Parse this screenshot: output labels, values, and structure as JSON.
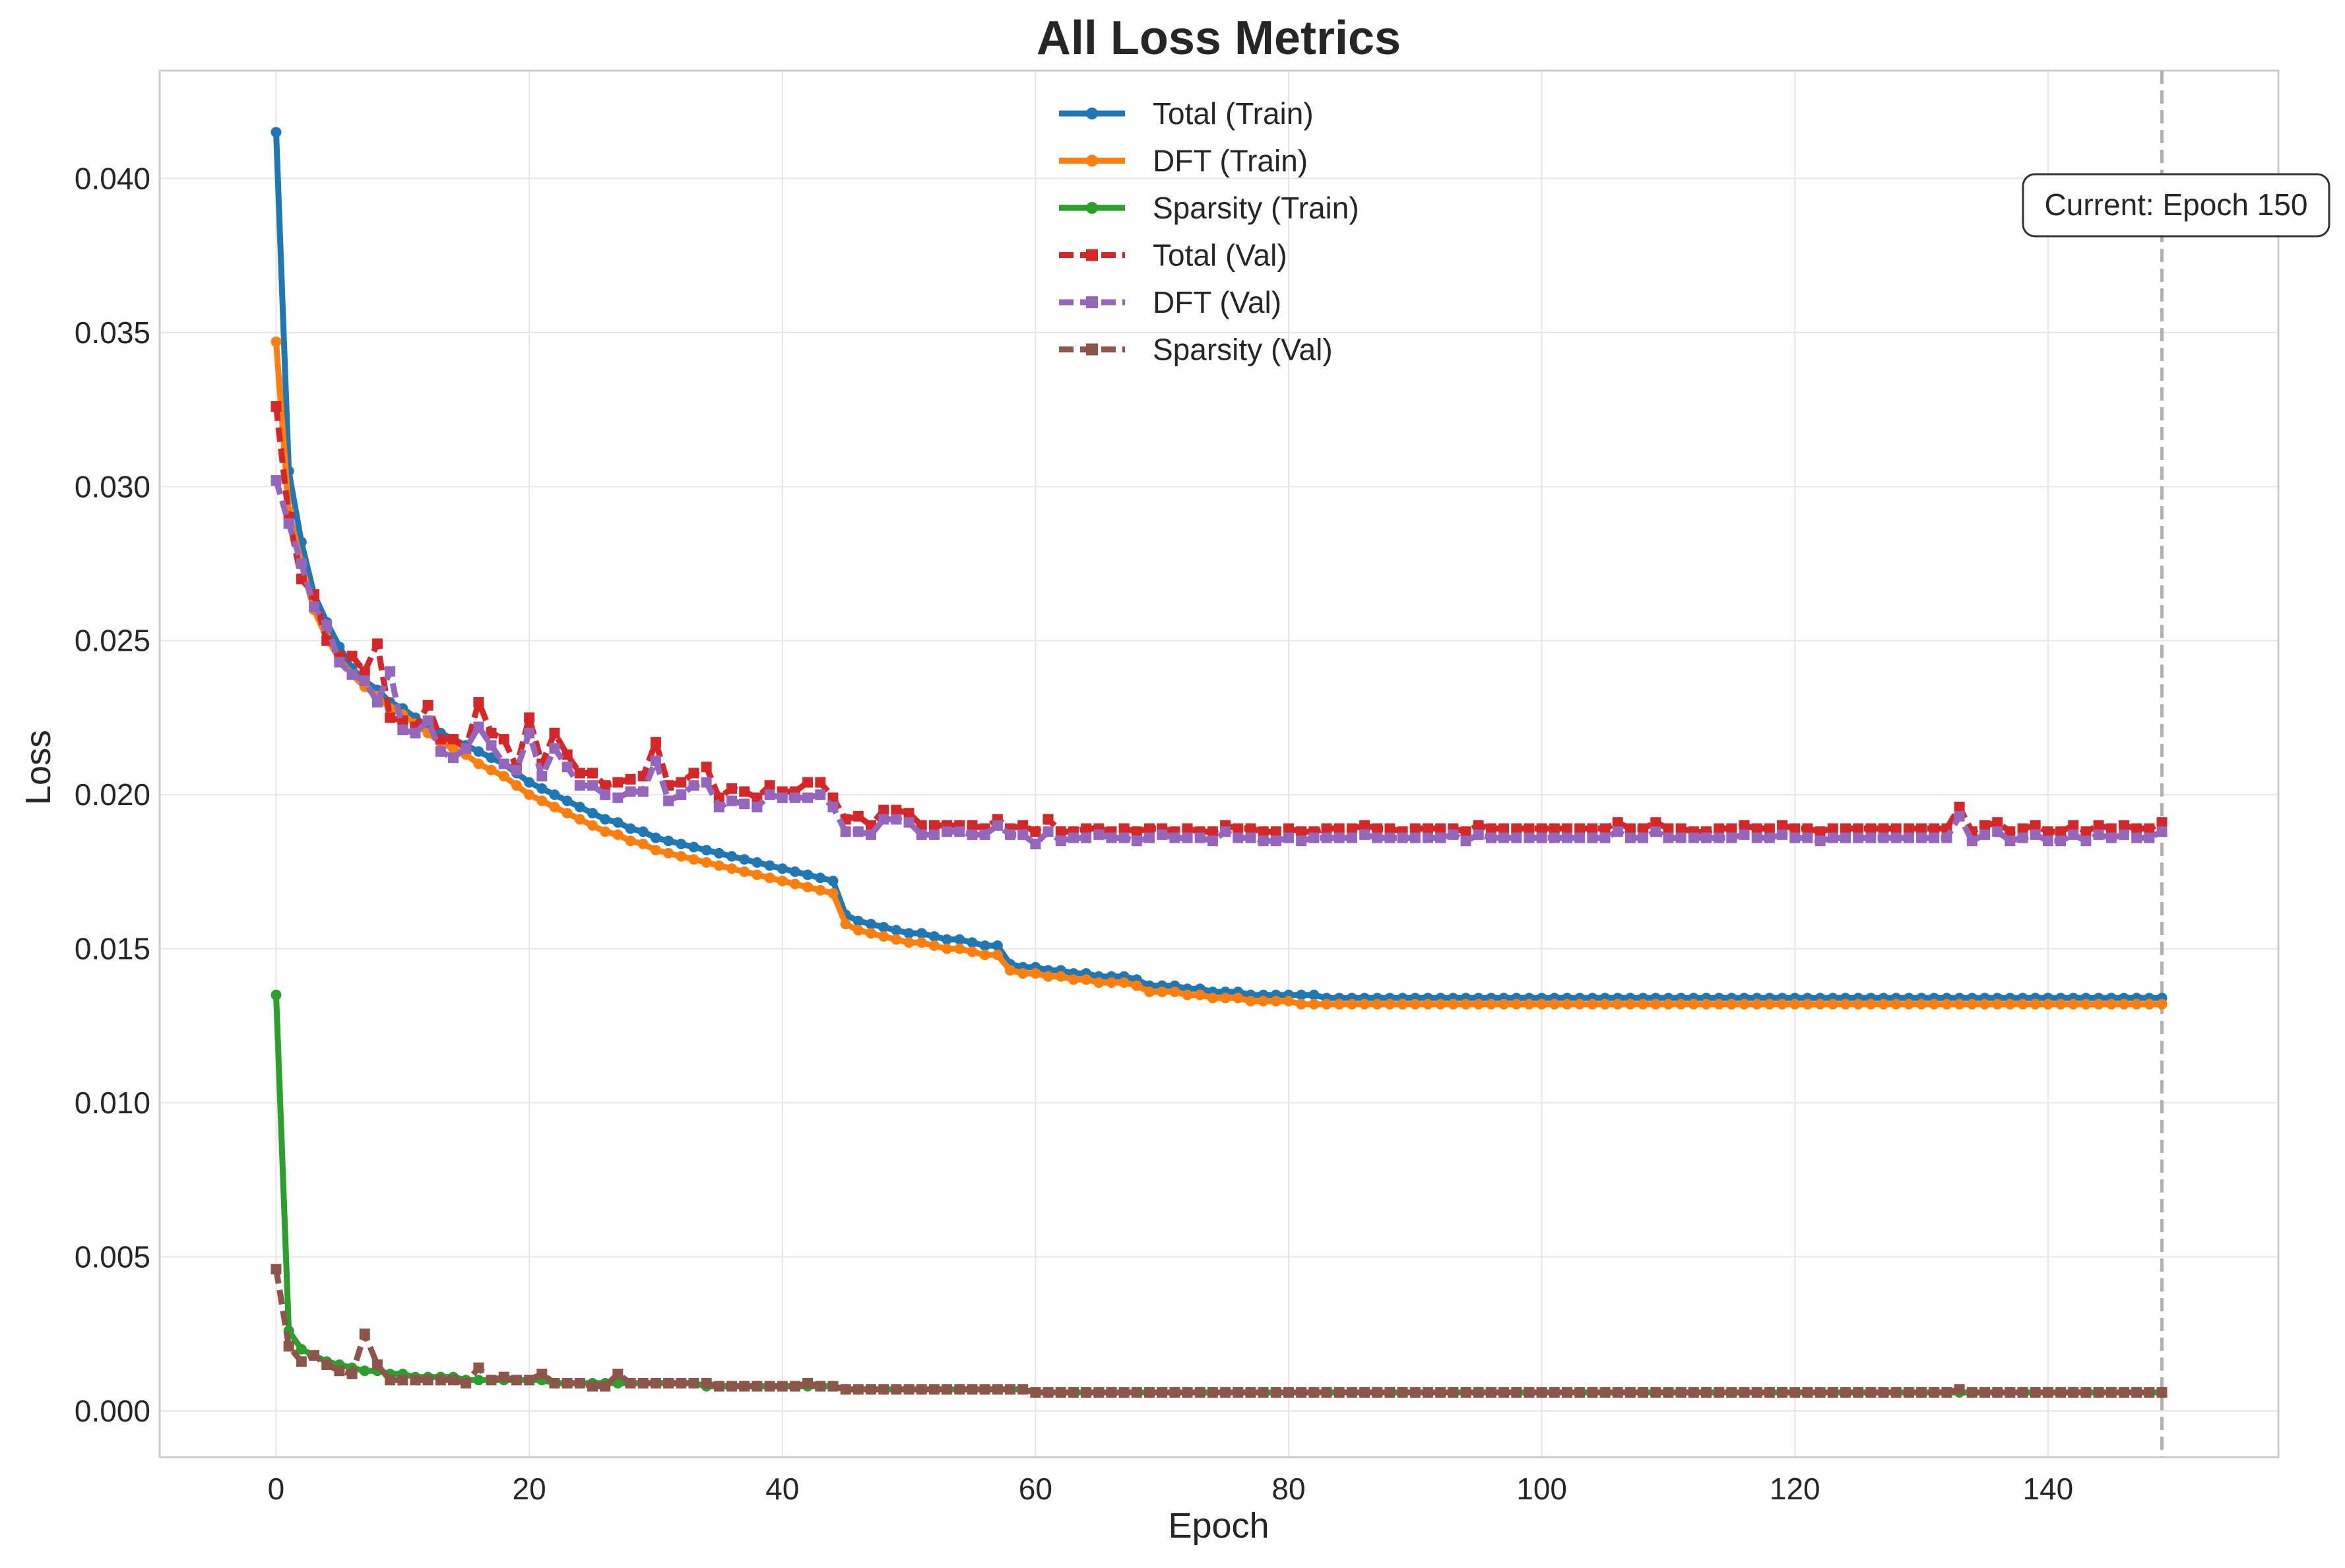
{
  "chart_data": {
    "type": "line",
    "title": "All Loss Metrics",
    "xlabel": "Epoch",
    "ylabel": "Loss",
    "xlim": [
      -9.2,
      158.2
    ],
    "ylim": [
      -0.0015,
      0.0435
    ],
    "xticks": [
      0,
      20,
      40,
      60,
      80,
      100,
      120,
      140
    ],
    "yticks": [
      0.0,
      0.005,
      0.01,
      0.015,
      0.02,
      0.025,
      0.03,
      0.035,
      0.04
    ],
    "xtick_labels": [
      "0",
      "20",
      "40",
      "60",
      "80",
      "100",
      "120",
      "140"
    ],
    "ytick_labels": [
      "0.000",
      "0.005",
      "0.010",
      "0.015",
      "0.020",
      "0.025",
      "0.030",
      "0.035",
      "0.040"
    ],
    "grid": true,
    "legend_position": "top-center",
    "annotation": {
      "text": "Current: Epoch 150",
      "vline_x": 149
    },
    "x": "0..149",
    "series": [
      {
        "name": "Total (Train)",
        "color": "#1f77b4",
        "linestyle": "solid",
        "marker": "circle",
        "values": [
          0.0415,
          0.0305,
          0.0282,
          0.0265,
          0.0256,
          0.0248,
          0.0241,
          0.0237,
          0.0234,
          0.023,
          0.0228,
          0.0225,
          0.0222,
          0.022,
          0.0218,
          0.0216,
          0.0214,
          0.0212,
          0.021,
          0.0207,
          0.0204,
          0.0202,
          0.02,
          0.0198,
          0.0196,
          0.0194,
          0.0192,
          0.0191,
          0.0189,
          0.0188,
          0.0186,
          0.0185,
          0.0184,
          0.0183,
          0.0182,
          0.0181,
          0.018,
          0.0179,
          0.0178,
          0.0177,
          0.0176,
          0.0175,
          0.0174,
          0.0173,
          0.0172,
          0.0161,
          0.0159,
          0.0158,
          0.0157,
          0.0156,
          0.0155,
          0.0155,
          0.0154,
          0.0153,
          0.0153,
          0.0152,
          0.0151,
          0.0151,
          0.0145,
          0.0144,
          0.0144,
          0.0143,
          0.0143,
          0.0142,
          0.0142,
          0.0141,
          0.0141,
          0.0141,
          0.014,
          0.0138,
          0.0138,
          0.0138,
          0.0137,
          0.0137,
          0.0136,
          0.0136,
          0.0136,
          0.0135,
          0.0135,
          0.0135,
          0.0135,
          0.0135,
          0.0135,
          0.0134,
          0.0134,
          0.0134,
          0.0134,
          0.0134,
          0.0134,
          0.0134,
          0.0134,
          0.0134,
          0.0134,
          0.0134,
          0.0134,
          0.0134,
          0.0134,
          0.0134,
          0.0134,
          0.0134,
          0.0134,
          0.0134,
          0.0134,
          0.0134,
          0.0134,
          0.0134,
          0.0134,
          0.0134,
          0.0134,
          0.0134,
          0.0134,
          0.0134,
          0.0134,
          0.0134,
          0.0134,
          0.0134,
          0.0134,
          0.0134,
          0.0134,
          0.0134,
          0.0134,
          0.0134,
          0.0134,
          0.0134,
          0.0134,
          0.0134,
          0.0134,
          0.0134,
          0.0134,
          0.0134,
          0.0134,
          0.0134,
          0.0134,
          0.0134,
          0.0134,
          0.0134,
          0.0134,
          0.0134,
          0.0134,
          0.0134,
          0.0134,
          0.0134,
          0.0134,
          0.0134,
          0.0134,
          0.0134,
          0.0134,
          0.0134,
          0.0134,
          0.0134
        ]
      },
      {
        "name": "DFT (Train)",
        "color": "#ff7f0e",
        "linestyle": "solid",
        "marker": "circle",
        "values": [
          0.0347,
          0.0292,
          0.0275,
          0.026,
          0.0251,
          0.0244,
          0.0239,
          0.0235,
          0.0232,
          0.0228,
          0.0226,
          0.0223,
          0.022,
          0.0217,
          0.0215,
          0.0213,
          0.021,
          0.0208,
          0.0206,
          0.0203,
          0.02,
          0.0198,
          0.0196,
          0.0194,
          0.0192,
          0.019,
          0.0188,
          0.0187,
          0.0185,
          0.0184,
          0.0182,
          0.0181,
          0.018,
          0.0179,
          0.0178,
          0.0177,
          0.0176,
          0.0175,
          0.0174,
          0.0173,
          0.0172,
          0.0171,
          0.017,
          0.0169,
          0.0168,
          0.0158,
          0.0156,
          0.0155,
          0.0154,
          0.0153,
          0.0152,
          0.0152,
          0.0151,
          0.015,
          0.015,
          0.0149,
          0.0148,
          0.0148,
          0.0143,
          0.0142,
          0.0142,
          0.0141,
          0.0141,
          0.014,
          0.014,
          0.0139,
          0.0139,
          0.0139,
          0.0138,
          0.0136,
          0.0136,
          0.0136,
          0.0135,
          0.0135,
          0.0134,
          0.0134,
          0.0134,
          0.0133,
          0.0133,
          0.0133,
          0.0133,
          0.0132,
          0.0132,
          0.0132,
          0.0132,
          0.0132,
          0.0132,
          0.0132,
          0.0132,
          0.0132,
          0.0132,
          0.0132,
          0.0132,
          0.0132,
          0.0132,
          0.0132,
          0.0132,
          0.0132,
          0.0132,
          0.0132,
          0.0132,
          0.0132,
          0.0132,
          0.0132,
          0.0132,
          0.0132,
          0.0132,
          0.0132,
          0.0132,
          0.0132,
          0.0132,
          0.0132,
          0.0132,
          0.0132,
          0.0132,
          0.0132,
          0.0132,
          0.0132,
          0.0132,
          0.0132,
          0.0132,
          0.0132,
          0.0132,
          0.0132,
          0.0132,
          0.0132,
          0.0132,
          0.0132,
          0.0132,
          0.0132,
          0.0132,
          0.0132,
          0.0132,
          0.0132,
          0.0132,
          0.0132,
          0.0132,
          0.0132,
          0.0132,
          0.0132,
          0.0132,
          0.0132,
          0.0132,
          0.0132,
          0.0132,
          0.0132,
          0.0132,
          0.0132,
          0.0132,
          0.0132
        ]
      },
      {
        "name": "Sparsity (Train)",
        "color": "#2ca02c",
        "linestyle": "solid",
        "marker": "circle",
        "values": [
          0.0135,
          0.0026,
          0.002,
          0.0018,
          0.0016,
          0.0015,
          0.0014,
          0.0013,
          0.0013,
          0.0012,
          0.0012,
          0.0011,
          0.0011,
          0.0011,
          0.0011,
          0.001,
          0.001,
          0.001,
          0.001,
          0.001,
          0.001,
          0.001,
          0.0009,
          0.0009,
          0.0009,
          0.0009,
          0.0009,
          0.0009,
          0.0009,
          0.0009,
          0.0009,
          0.0009,
          0.0009,
          0.0009,
          0.0008,
          0.0008,
          0.0008,
          0.0008,
          0.0008,
          0.0008,
          0.0008,
          0.0008,
          0.0008,
          0.0008,
          0.0008,
          0.0007,
          0.0007,
          0.0007,
          0.0007,
          0.0007,
          0.0007,
          0.0007,
          0.0007,
          0.0007,
          0.0007,
          0.0007,
          0.0007,
          0.0007,
          0.0007,
          0.0007,
          0.0006,
          0.0006,
          0.0006,
          0.0006,
          0.0006,
          0.0006,
          0.0006,
          0.0006,
          0.0006,
          0.0006,
          0.0006,
          0.0006,
          0.0006,
          0.0006,
          0.0006,
          0.0006,
          0.0006,
          0.0006,
          0.0006,
          0.0006,
          0.0006,
          0.0006,
          0.0006,
          0.0006,
          0.0006,
          0.0006,
          0.0006,
          0.0006,
          0.0006,
          0.0006,
          0.0006,
          0.0006,
          0.0006,
          0.0006,
          0.0006,
          0.0006,
          0.0006,
          0.0006,
          0.0006,
          0.0006,
          0.0006,
          0.0006,
          0.0006,
          0.0006,
          0.0006,
          0.0006,
          0.0006,
          0.0006,
          0.0006,
          0.0006,
          0.0006,
          0.0006,
          0.0006,
          0.0006,
          0.0006,
          0.0006,
          0.0006,
          0.0006,
          0.0006,
          0.0006,
          0.0006,
          0.0006,
          0.0006,
          0.0006,
          0.0006,
          0.0006,
          0.0006,
          0.0006,
          0.0006,
          0.0006,
          0.0006,
          0.0006,
          0.0006,
          0.0006,
          0.0006,
          0.0006,
          0.0006,
          0.0006,
          0.0006,
          0.0006,
          0.0006,
          0.0006,
          0.0006,
          0.0006,
          0.0006,
          0.0006,
          0.0006,
          0.0006,
          0.0006,
          0.0006
        ]
      },
      {
        "name": "Total (Val)",
        "color": "#d62728",
        "linestyle": "dashed",
        "marker": "square",
        "values": [
          0.0326,
          0.029,
          0.027,
          0.0265,
          0.025,
          0.0245,
          0.0245,
          0.024,
          0.0249,
          0.0225,
          0.0224,
          0.0222,
          0.0229,
          0.0218,
          0.0218,
          0.0215,
          0.023,
          0.022,
          0.0218,
          0.0209,
          0.0225,
          0.021,
          0.022,
          0.0213,
          0.0207,
          0.0207,
          0.0203,
          0.0204,
          0.0205,
          0.0206,
          0.0217,
          0.0203,
          0.0204,
          0.0207,
          0.0209,
          0.0199,
          0.0202,
          0.0201,
          0.0199,
          0.0203,
          0.0201,
          0.0201,
          0.0204,
          0.0204,
          0.0199,
          0.0192,
          0.0193,
          0.019,
          0.0195,
          0.0195,
          0.0194,
          0.019,
          0.019,
          0.019,
          0.019,
          0.019,
          0.0189,
          0.0192,
          0.0189,
          0.019,
          0.0188,
          0.0192,
          0.0188,
          0.0188,
          0.0189,
          0.0189,
          0.0188,
          0.0189,
          0.0188,
          0.0189,
          0.0189,
          0.0188,
          0.0189,
          0.0188,
          0.0188,
          0.019,
          0.0189,
          0.0189,
          0.0188,
          0.0188,
          0.0189,
          0.0188,
          0.0188,
          0.0189,
          0.0189,
          0.0189,
          0.019,
          0.0189,
          0.0189,
          0.0188,
          0.0189,
          0.0189,
          0.0189,
          0.0189,
          0.0188,
          0.019,
          0.0189,
          0.0189,
          0.0189,
          0.0189,
          0.0189,
          0.0189,
          0.0189,
          0.0189,
          0.0189,
          0.0189,
          0.0191,
          0.0189,
          0.0189,
          0.0191,
          0.0189,
          0.0189,
          0.0188,
          0.0188,
          0.0189,
          0.0189,
          0.019,
          0.0189,
          0.0189,
          0.019,
          0.0189,
          0.0189,
          0.0188,
          0.0189,
          0.0189,
          0.0189,
          0.0189,
          0.0189,
          0.0189,
          0.0189,
          0.0189,
          0.0189,
          0.0189,
          0.0196,
          0.0188,
          0.019,
          0.0191,
          0.0188,
          0.0189,
          0.019,
          0.0188,
          0.0188,
          0.019,
          0.0188,
          0.019,
          0.0189,
          0.019,
          0.0189,
          0.0189,
          0.0191
        ]
      },
      {
        "name": "DFT (Val)",
        "color": "#9467bd",
        "linestyle": "dashed",
        "marker": "square",
        "values": [
          0.0302,
          0.0288,
          0.0275,
          0.0261,
          0.0255,
          0.0243,
          0.0239,
          0.0237,
          0.023,
          0.024,
          0.0221,
          0.022,
          0.0224,
          0.0214,
          0.0212,
          0.0215,
          0.0222,
          0.0216,
          0.021,
          0.0208,
          0.022,
          0.0206,
          0.0215,
          0.0209,
          0.0203,
          0.0203,
          0.02,
          0.0199,
          0.0201,
          0.0201,
          0.0211,
          0.0198,
          0.02,
          0.0203,
          0.0204,
          0.0196,
          0.0198,
          0.0197,
          0.0196,
          0.02,
          0.0199,
          0.0199,
          0.0199,
          0.02,
          0.0196,
          0.0188,
          0.0188,
          0.0187,
          0.0192,
          0.0192,
          0.0191,
          0.0187,
          0.0187,
          0.0188,
          0.0188,
          0.0187,
          0.0187,
          0.019,
          0.0187,
          0.0187,
          0.0184,
          0.0188,
          0.0185,
          0.0186,
          0.0186,
          0.0187,
          0.0186,
          0.0186,
          0.0185,
          0.0186,
          0.0187,
          0.0186,
          0.0186,
          0.0186,
          0.0185,
          0.0188,
          0.0186,
          0.0186,
          0.0185,
          0.0185,
          0.0186,
          0.0185,
          0.0186,
          0.0186,
          0.0186,
          0.0186,
          0.0187,
          0.0186,
          0.0186,
          0.0186,
          0.0186,
          0.0186,
          0.0186,
          0.0187,
          0.0185,
          0.0187,
          0.0186,
          0.0186,
          0.0186,
          0.0186,
          0.0186,
          0.0186,
          0.0186,
          0.0186,
          0.0186,
          0.0186,
          0.0188,
          0.0186,
          0.0186,
          0.0188,
          0.0186,
          0.0186,
          0.0186,
          0.0186,
          0.0186,
          0.0186,
          0.0187,
          0.0186,
          0.0186,
          0.0187,
          0.0186,
          0.0186,
          0.0185,
          0.0186,
          0.0186,
          0.0186,
          0.0186,
          0.0186,
          0.0186,
          0.0186,
          0.0186,
          0.0186,
          0.0186,
          0.0193,
          0.0185,
          0.0187,
          0.0188,
          0.0185,
          0.0186,
          0.0187,
          0.0185,
          0.0185,
          0.0187,
          0.0185,
          0.0187,
          0.0186,
          0.0187,
          0.0186,
          0.0186,
          0.0188
        ]
      },
      {
        "name": "Sparsity (Val)",
        "color": "#8c564b",
        "linestyle": "dashed",
        "marker": "square",
        "values": [
          0.0046,
          0.0021,
          0.0016,
          0.0018,
          0.0015,
          0.0013,
          0.0012,
          0.0025,
          0.0015,
          0.001,
          0.001,
          0.001,
          0.001,
          0.001,
          0.001,
          0.0009,
          0.0014,
          0.001,
          0.0011,
          0.001,
          0.001,
          0.0012,
          0.0009,
          0.0009,
          0.0009,
          0.0008,
          0.0008,
          0.0012,
          0.0009,
          0.0009,
          0.0009,
          0.0009,
          0.0009,
          0.0009,
          0.0009,
          0.0008,
          0.0008,
          0.0008,
          0.0008,
          0.0008,
          0.0008,
          0.0008,
          0.0009,
          0.0008,
          0.0008,
          0.0007,
          0.0007,
          0.0007,
          0.0007,
          0.0007,
          0.0007,
          0.0007,
          0.0007,
          0.0007,
          0.0007,
          0.0007,
          0.0007,
          0.0007,
          0.0007,
          0.0007,
          0.0006,
          0.0006,
          0.0006,
          0.0006,
          0.0006,
          0.0006,
          0.0006,
          0.0006,
          0.0006,
          0.0006,
          0.0006,
          0.0006,
          0.0006,
          0.0006,
          0.0006,
          0.0006,
          0.0006,
          0.0006,
          0.0006,
          0.0006,
          0.0006,
          0.0006,
          0.0006,
          0.0006,
          0.0006,
          0.0006,
          0.0006,
          0.0006,
          0.0006,
          0.0006,
          0.0006,
          0.0006,
          0.0006,
          0.0006,
          0.0006,
          0.0006,
          0.0006,
          0.0006,
          0.0006,
          0.0006,
          0.0006,
          0.0006,
          0.0006,
          0.0006,
          0.0006,
          0.0006,
          0.0006,
          0.0006,
          0.0006,
          0.0006,
          0.0006,
          0.0006,
          0.0006,
          0.0006,
          0.0006,
          0.0006,
          0.0006,
          0.0006,
          0.0006,
          0.0006,
          0.0006,
          0.0006,
          0.0006,
          0.0006,
          0.0006,
          0.0006,
          0.0006,
          0.0006,
          0.0006,
          0.0006,
          0.0006,
          0.0006,
          0.0006,
          0.0007,
          0.0006,
          0.0006,
          0.0006,
          0.0006,
          0.0006,
          0.0006,
          0.0006,
          0.0006,
          0.0006,
          0.0006,
          0.0006,
          0.0006,
          0.0006,
          0.0006,
          0.0006,
          0.0006
        ]
      }
    ]
  }
}
